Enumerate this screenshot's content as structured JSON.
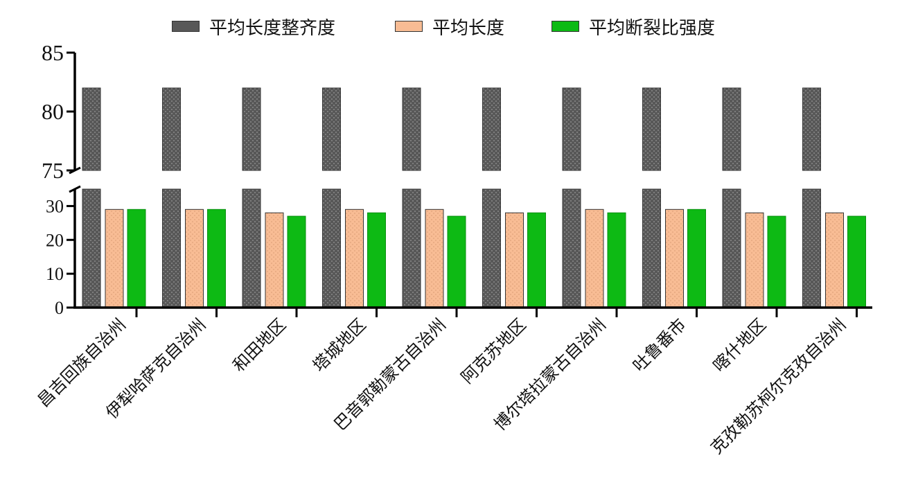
{
  "chart_data": {
    "type": "bar",
    "categories": [
      "昌吉回族自治州",
      "伊犁哈萨克自治州",
      "和田地区",
      "塔城地区",
      "巴音郭勒蒙古自治州",
      "阿克苏地区",
      "博尔塔拉蒙古自治州",
      "吐鲁番市",
      "喀什地区",
      "克孜勒苏柯尔克孜自治州"
    ],
    "series": [
      {
        "name": "平均长度整齐度",
        "values": [
          82,
          82,
          82,
          82,
          82,
          82,
          82,
          82,
          82,
          82
        ],
        "color": "#555555",
        "pattern": "dots"
      },
      {
        "name": "平均长度",
        "values": [
          29,
          29,
          28,
          29,
          29,
          28,
          29,
          29,
          28,
          28
        ],
        "color": "#f8bc94",
        "pattern": "dots"
      },
      {
        "name": "平均断裂比强度",
        "values": [
          29,
          29,
          27,
          28,
          27,
          28,
          28,
          29,
          27,
          27
        ],
        "color": "#0dba14",
        "pattern": "none"
      }
    ],
    "y_axis": {
      "broken": true,
      "lower_segment": {
        "range": [
          0,
          35
        ],
        "ticks": [
          0,
          10,
          20,
          30
        ]
      },
      "upper_segment": {
        "range": [
          75,
          85
        ],
        "ticks": [
          75,
          80,
          85
        ]
      }
    },
    "legend_position": "top-center",
    "grid": false,
    "xlabel": "",
    "ylabel": "",
    "title": ""
  }
}
